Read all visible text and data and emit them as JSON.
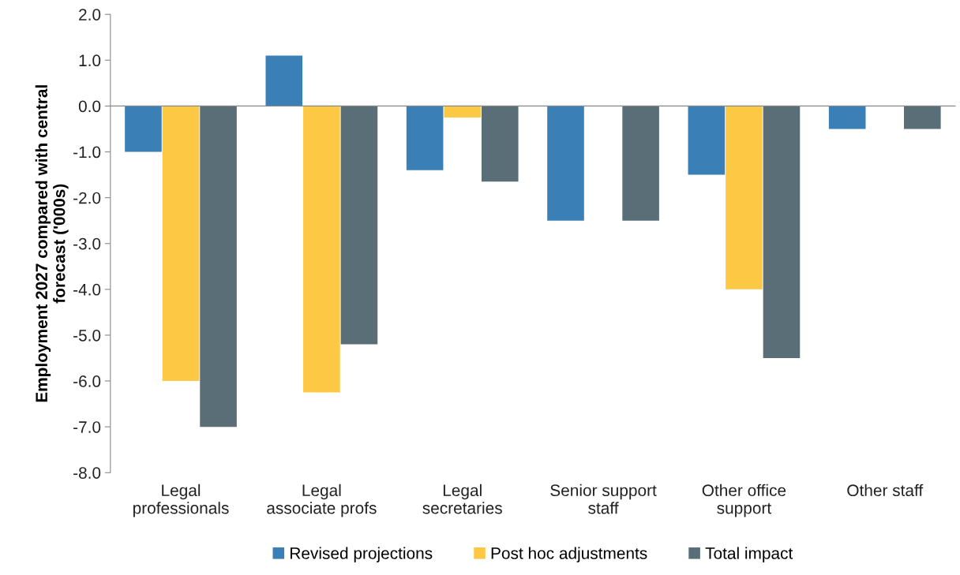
{
  "chart_data": {
    "type": "bar",
    "ylabel": "Employment 2027 compared with central\nforecast ('000s)",
    "categories": [
      "Legal\nprofessionals",
      "Legal\nassociate profs",
      "Legal\nsecretaries",
      "Senior support\nstaff",
      "Other office\nsupport",
      "Other staff"
    ],
    "series": [
      {
        "name": "Revised projections",
        "color": "#3a7fb5",
        "values": [
          -1.0,
          1.1,
          -1.4,
          -2.5,
          -1.5,
          -0.5
        ]
      },
      {
        "name": "Post hoc adjustments",
        "color": "#fdc844",
        "values": [
          -6.0,
          -6.25,
          -0.25,
          0,
          -4.0,
          0
        ]
      },
      {
        "name": "Total impact",
        "color": "#5a6e78",
        "values": [
          -7.0,
          -5.2,
          -1.65,
          -2.5,
          -5.5,
          -0.5
        ]
      }
    ],
    "ylim": [
      -8,
      2
    ],
    "yticks": [
      {
        "value": -8,
        "label": "-8.0"
      },
      {
        "value": -7,
        "label": "-7.0"
      },
      {
        "value": -6,
        "label": "-6.0"
      },
      {
        "value": -5,
        "label": "-5.0"
      },
      {
        "value": -4,
        "label": "-4.0"
      },
      {
        "value": -3,
        "label": "-3.0"
      },
      {
        "value": -2,
        "label": "-2.0"
      },
      {
        "value": -1,
        "label": "-1.0"
      },
      {
        "value": 0,
        "label": "0.0"
      },
      {
        "value": 1,
        "label": "1.0"
      },
      {
        "value": 2,
        "label": "2.0"
      }
    ],
    "legend": "bottom"
  }
}
